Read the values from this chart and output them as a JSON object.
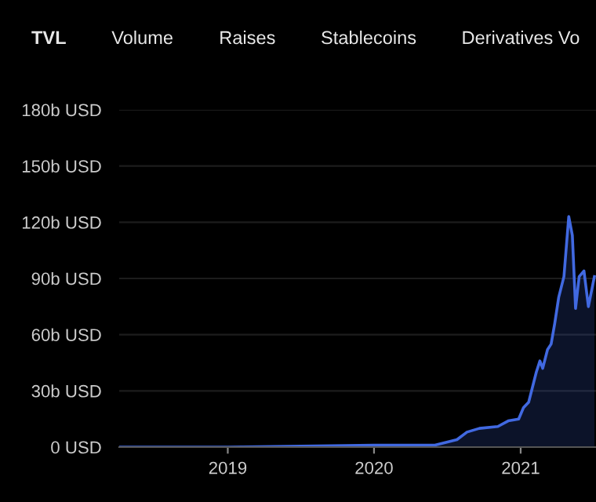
{
  "chart_data": {
    "type": "area",
    "annotations": [
      "TVL",
      "Volume",
      "Raises",
      "Stablecoins",
      "Derivatives Vo"
    ],
    "x": [
      "2018-04-05",
      "2019-01-01",
      "2020-01-01",
      "2020-06-01",
      "2020-07-26",
      "2020-08-20",
      "2020-09-20",
      "2020-11-05",
      "2020-12-01",
      "2020-12-27",
      "2021-01-08",
      "2021-01-21",
      "2021-02-09",
      "2021-02-18",
      "2021-02-25",
      "2021-03-09",
      "2021-03-18",
      "2021-03-27",
      "2021-04-06",
      "2021-04-19",
      "2021-05-01",
      "2021-05-10",
      "2021-05-18",
      "2021-05-27",
      "2021-06-08",
      "2021-06-19",
      "2021-07-04"
    ],
    "series": [
      {
        "color": "#4169e1",
        "values": [
          0,
          0,
          1,
          1,
          4,
          8,
          10,
          11,
          14,
          15,
          21,
          24,
          40,
          46,
          42,
          52,
          55,
          66,
          80,
          91,
          123,
          113,
          74,
          91,
          94,
          75,
          91
        ]
      }
    ],
    "xlim": [
      "2018-04-05",
      "2021-07-08"
    ],
    "xticks": [
      {
        "value": "2019-01-01",
        "label": "2019"
      },
      {
        "value": "2020-01-01",
        "label": "2020"
      },
      {
        "value": "2021-01-01",
        "label": "2021"
      }
    ],
    "ylim": [
      0,
      180
    ],
    "yticks": [
      {
        "value": 0,
        "label": "0 USD"
      },
      {
        "value": 30,
        "label": "30b USD"
      },
      {
        "value": 60,
        "label": "60b USD"
      },
      {
        "value": 90,
        "label": "90b USD"
      },
      {
        "value": 120,
        "label": "120b USD"
      },
      {
        "value": 150,
        "label": "150b USD"
      },
      {
        "value": 180,
        "label": "180b USD"
      }
    ],
    "grid": "y",
    "legend": false
  }
}
